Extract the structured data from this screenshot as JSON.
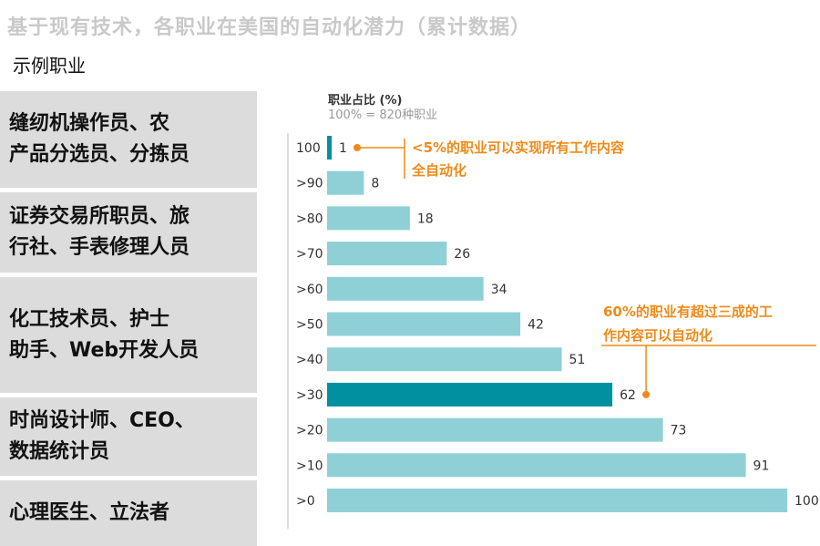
{
  "title": "基于现有技术，各职业在美国的自动化潜力（累计数据）",
  "subtitle": "示例职业",
  "examples": [
    "缝纫机操作员、农\n产品分选员、分拣员",
    "证券交易所职员、旅\n行社、手表修理人员",
    "化工技术员、护士\n助手、Web开发人员",
    "时尚设计师、CEO、\n数据统计员",
    "心理医生、立法者"
  ],
  "colors": {
    "bar": "#8fd0d6",
    "highlight": "#00909e",
    "annotation": "#ef8a19"
  },
  "chart_data": {
    "type": "bar",
    "orientation": "horizontal",
    "ylabel": "职业占比 (%)",
    "ylabel_sub": "100% = 820种职业",
    "categories": [
      "100",
      ">90",
      ">80",
      ">70",
      ">60",
      ">50",
      ">40",
      ">30",
      ">20",
      ">10",
      ">0"
    ],
    "values": [
      1,
      8,
      18,
      26,
      34,
      42,
      51,
      62,
      73,
      91,
      100
    ],
    "highlighted": [
      ">30",
      "100"
    ],
    "xlim": [
      0,
      100
    ],
    "annotations": [
      {
        "line1": "<5%的职业可以实现所有工作内容",
        "line2": "全自动化",
        "category": "100"
      },
      {
        "line1": "60%的职业有超过三成的工",
        "line2": "作内容可以自动化",
        "category": ">30"
      }
    ]
  }
}
